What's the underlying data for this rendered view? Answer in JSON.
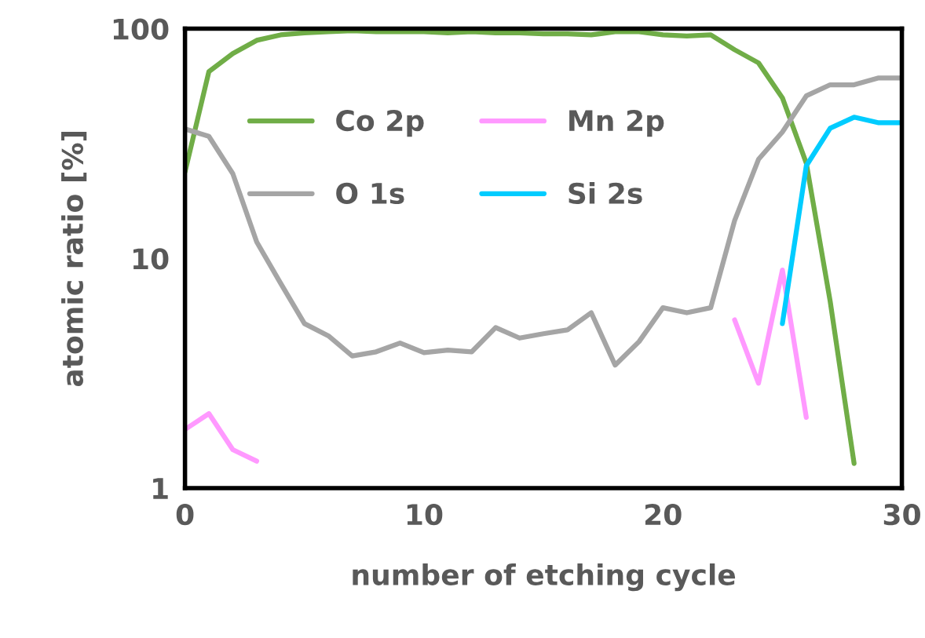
{
  "chart_data": {
    "type": "line",
    "xlabel": "number of etching cycle",
    "ylabel": "atomic ratio [%]",
    "x": [
      0,
      1,
      2,
      3,
      4,
      5,
      6,
      7,
      8,
      9,
      10,
      11,
      12,
      13,
      14,
      15,
      16,
      17,
      18,
      19,
      20,
      21,
      22,
      23,
      24,
      25,
      26,
      27,
      28,
      29,
      30
    ],
    "series": [
      {
        "name": "Co 2p",
        "color": "#70ad47",
        "values": [
          23.8,
          65,
          78,
          89,
          94,
          96,
          97,
          98,
          97,
          97,
          97,
          96,
          97,
          96,
          96,
          95,
          95,
          94,
          97,
          97,
          94,
          93,
          94,
          81,
          71,
          50,
          26,
          6.5,
          1.28,
          null,
          null
        ]
      },
      {
        "name": "Mn 2p",
        "color": "#ff99ff",
        "values": [
          1.8,
          2.11,
          1.47,
          1.31,
          null,
          null,
          null,
          null,
          null,
          null,
          null,
          null,
          null,
          null,
          null,
          null,
          null,
          null,
          null,
          null,
          null,
          null,
          null,
          5.4,
          2.86,
          8.9,
          2.03,
          null,
          null,
          null,
          null
        ]
      },
      {
        "name": "O 1s",
        "color": "#a5a5a5",
        "values": [
          36.6,
          34,
          23.4,
          11.8,
          7.8,
          5.2,
          4.6,
          3.76,
          3.92,
          4.28,
          3.89,
          3.99,
          3.92,
          5.0,
          4.5,
          4.7,
          4.88,
          5.8,
          3.43,
          4.34,
          6.1,
          5.8,
          6.1,
          14.6,
          27,
          35.5,
          51,
          57,
          57,
          61,
          61
        ]
      },
      {
        "name": "Si 2s",
        "color": "#00ccff",
        "values": [
          null,
          null,
          null,
          null,
          null,
          null,
          null,
          null,
          null,
          null,
          null,
          null,
          null,
          null,
          null,
          null,
          null,
          null,
          null,
          null,
          null,
          null,
          null,
          null,
          null,
          5.2,
          25.3,
          36.9,
          41.2,
          39,
          39
        ]
      }
    ],
    "log": "y",
    "xlim": [
      0,
      30
    ],
    "xticks": [
      0,
      10,
      20,
      30
    ],
    "ylim": [
      1,
      100
    ],
    "yticks": [
      1,
      10,
      100
    ],
    "grid": false,
    "legend": "top",
    "marker": "none",
    "line_style": "solid"
  }
}
